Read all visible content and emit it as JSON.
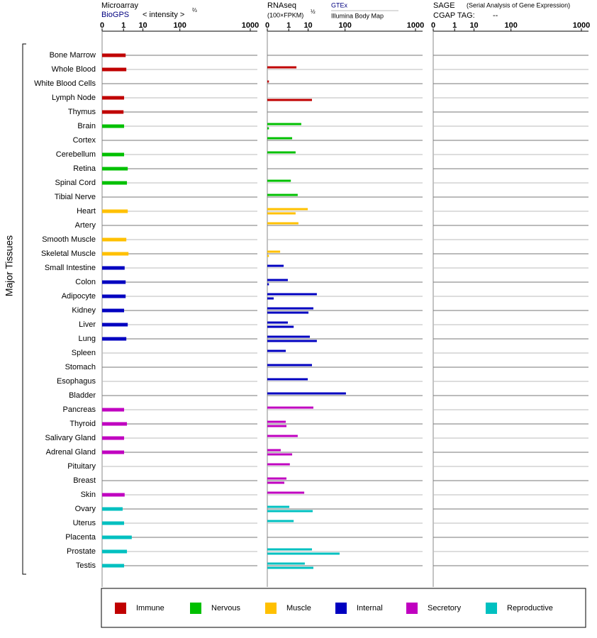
{
  "chart_data": {
    "type": "bar",
    "orientation": "horizontal",
    "y_label": "Major Tissues",
    "categories": [
      "Bone Marrow",
      "Whole Blood",
      "White Blood Cells",
      "Lymph Node",
      "Thymus",
      "Brain",
      "Cortex",
      "Cerebellum",
      "Retina",
      "Spinal Cord",
      "Tibial Nerve",
      "Heart",
      "Artery",
      "Smooth Muscle",
      "Skeletal Muscle",
      "Small Intestine",
      "Colon",
      "Adipocyte",
      "Kidney",
      "Liver",
      "Lung",
      "Spleen",
      "Stomach",
      "Esophagus",
      "Bladder",
      "Pancreas",
      "Thyroid",
      "Salivary Gland",
      "Adrenal Gland",
      "Pituitary",
      "Breast",
      "Skin",
      "Ovary",
      "Uterus",
      "Placenta",
      "Prostate",
      "Testis"
    ],
    "category_groups": [
      0,
      0,
      0,
      0,
      0,
      1,
      1,
      1,
      1,
      1,
      1,
      2,
      2,
      2,
      2,
      3,
      3,
      3,
      3,
      3,
      3,
      3,
      3,
      3,
      3,
      4,
      4,
      4,
      4,
      4,
      4,
      4,
      5,
      5,
      5,
      5,
      5
    ],
    "groups": [
      {
        "name": "Immune",
        "color": "#c00000"
      },
      {
        "name": "Nervous",
        "color": "#00c000"
      },
      {
        "name": "Muscle",
        "color": "#ffc000"
      },
      {
        "name": "Internal",
        "color": "#0000c0"
      },
      {
        "name": "Secretory",
        "color": "#c000c0"
      },
      {
        "name": "Reproductive",
        "color": "#00c0c0"
      }
    ],
    "xscale": "power",
    "exponent": 0.28,
    "panels": [
      {
        "title": "Microarray",
        "source": "BioGPS",
        "axis_label": "< intensity >",
        "axis_power": "⅔",
        "xlim": [
          0,
          1000
        ],
        "xticks": [
          0,
          1,
          10,
          100,
          1000
        ],
        "series": [
          {
            "values": [
              1.4,
              1.55,
              null,
              1.1,
              1.0,
              1.1,
              null,
              1.1,
              1.9,
              1.7,
              null,
              1.9,
              null,
              1.55,
              2.1,
              1.2,
              1.4,
              1.4,
              1.1,
              1.9,
              1.55,
              null,
              null,
              null,
              null,
              1.1,
              1.7,
              1.1,
              1.1,
              null,
              null,
              1.2,
              0.86,
              1.1,
              3.2,
              1.7,
              1.1
            ]
          }
        ]
      },
      {
        "title": "RNAseq",
        "axis_label": "(100×FPKM)",
        "axis_power": "½",
        "xlim": [
          0,
          1000
        ],
        "xticks": [
          0,
          1,
          10,
          100,
          1000
        ],
        "series": [
          {
            "name": "GTEx",
            "values": [
              null,
              3.0,
              0.0001,
              null,
              null,
              5.2,
              1.7,
              2.7,
              null,
              1.4,
              3.5,
              9.7,
              3.8,
              null,
              0.16,
              0.38,
              0.86,
              20,
              15.4,
              0.86,
              11.6,
              0.59,
              13.8,
              9.7,
              104,
              15.4,
              0.59,
              3.5,
              0.19,
              1.2,
              0.67,
              7.0,
              1.1,
              2.1,
              null,
              13.8,
              7.4
            ]
          },
          {
            "name": "Illumina Body Map",
            "values": [
              null,
              null,
              null,
              13.8,
              null,
              0.0001,
              null,
              null,
              null,
              null,
              null,
              2.7,
              null,
              null,
              0.0001,
              null,
              0.0001,
              0.013,
              10.3,
              2.1,
              20,
              null,
              null,
              null,
              null,
              null,
              0.67,
              null,
              1.7,
              null,
              0.44,
              null,
              14.6,
              null,
              null,
              77,
              15.4
            ]
          }
        ]
      },
      {
        "title": "SAGE",
        "subtitle": "(Serial Analysis of Gene Expression)",
        "tag_label": "CGAP TAG:",
        "tag": "--",
        "xlim": [
          0,
          1000
        ],
        "xticks": [
          0,
          1,
          10,
          100,
          1000
        ],
        "series": []
      }
    ]
  }
}
